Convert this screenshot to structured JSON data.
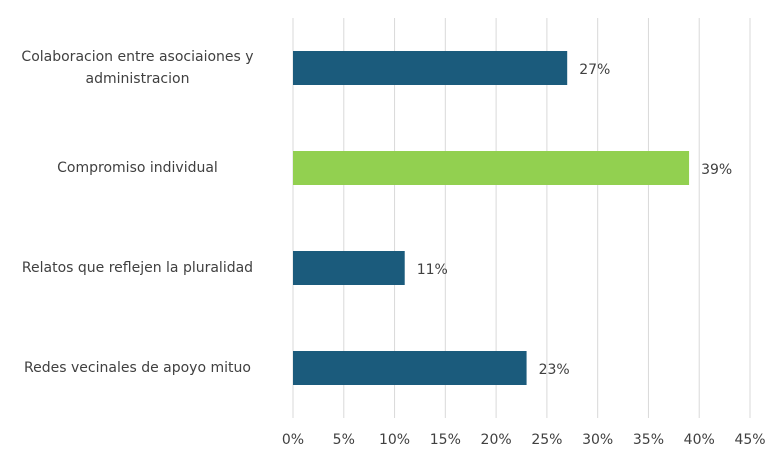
{
  "chart_data": {
    "type": "barh",
    "categories": [
      "Colaboracion entre asociaiones y administracion",
      "Compromiso individual",
      "Relatos que reflejen la pluralidad",
      "Redes vecinales de apoyo mituo"
    ],
    "values": [
      27,
      39,
      11,
      23
    ],
    "value_labels": [
      "27%",
      "39%",
      "11%",
      "23%"
    ],
    "colors": [
      "#1b5b7c",
      "#92d050",
      "#1b5b7c",
      "#1b5b7c"
    ],
    "xlim": [
      0,
      45
    ],
    "xticks": [
      {
        "value": 0,
        "label": "0%"
      },
      {
        "value": 5,
        "label": "5%"
      },
      {
        "value": 10,
        "label": "10%"
      },
      {
        "value": 15,
        "label": "15%"
      },
      {
        "value": 20,
        "label": "20%"
      },
      {
        "value": 25,
        "label": "25%"
      },
      {
        "value": 30,
        "label": "30%"
      },
      {
        "value": 35,
        "label": "35%"
      },
      {
        "value": 40,
        "label": "40%"
      },
      {
        "value": 45,
        "label": "45%"
      }
    ],
    "grid": true
  }
}
